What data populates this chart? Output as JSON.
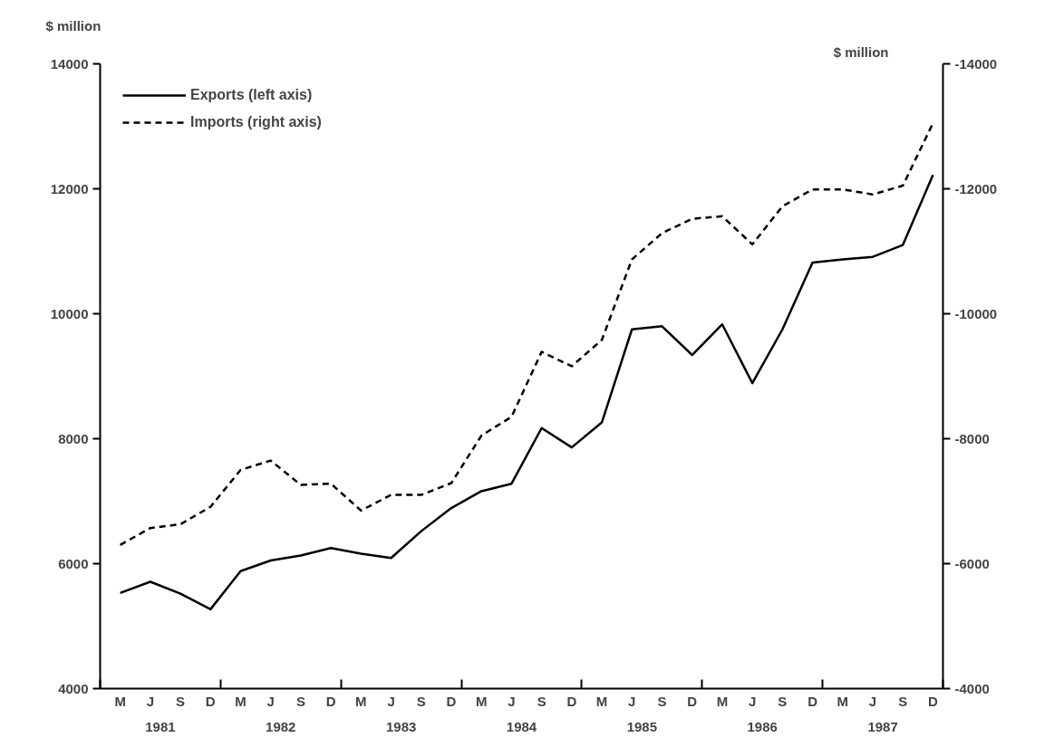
{
  "chart_data": {
    "type": "line",
    "ylabel": "$ million",
    "y2label": "$ million",
    "categories": [
      "M",
      "J",
      "S",
      "D",
      "M",
      "J",
      "S",
      "D",
      "M",
      "J",
      "S",
      "D",
      "M",
      "J",
      "S",
      "D",
      "M",
      "J",
      "S",
      "D",
      "M",
      "J",
      "S",
      "D",
      "M",
      "J",
      "S",
      "D"
    ],
    "series": [
      {
        "name": "Exports (left axis)",
        "color": "#000000",
        "line_style": "solid",
        "values": [
          5530,
          5710,
          5520,
          5270,
          5880,
          6050,
          6130,
          6250,
          6160,
          6090,
          6520,
          6890,
          7160,
          7280,
          8170,
          7860,
          8260,
          9750,
          9800,
          9340,
          9830,
          8890,
          9750,
          10820,
          10870,
          10910,
          11100,
          12220
        ]
      },
      {
        "name": "Imports (right axis)",
        "color": "#000000",
        "line_style": "dashed",
        "axis": "y2",
        "values": [
          -6300,
          -6570,
          -6630,
          -6910,
          -7500,
          -7650,
          -7260,
          -7280,
          -6850,
          -7100,
          -7100,
          -7290,
          -8050,
          -8350,
          -9390,
          -9160,
          -9580,
          -10870,
          -11290,
          -11520,
          -11560,
          -11110,
          -11720,
          -11990,
          -11990,
          -11910,
          -12050,
          -13050
        ]
      }
    ],
    "x2lim": [
      1981,
      1988
    ],
    "x2ticks": [
      {
        "value": 1981,
        "label": null
      },
      {
        "value": 1981.5,
        "label": "1981"
      },
      {
        "value": 1982,
        "label": null
      },
      {
        "value": 1982.5,
        "label": "1982"
      },
      {
        "value": 1983,
        "label": null
      },
      {
        "value": 1983.5,
        "label": "1983"
      },
      {
        "value": 1984,
        "label": null
      },
      {
        "value": 1984.5,
        "label": "1984"
      },
      {
        "value": 1985,
        "label": null
      },
      {
        "value": 1985.5,
        "label": "1985"
      },
      {
        "value": 1986,
        "label": null
      },
      {
        "value": 1986.5,
        "label": "1986"
      },
      {
        "value": 1987,
        "label": null
      },
      {
        "value": 1987.5,
        "label": "1987"
      },
      {
        "value": 1988,
        "label": null
      }
    ],
    "ylim": [
      4000,
      14000
    ],
    "yticks": [
      4000,
      6000,
      8000,
      10000,
      12000,
      14000
    ],
    "y2lim": [
      -4000,
      -14000
    ],
    "y2ticks": [
      -4000,
      -6000,
      -8000,
      -10000,
      -12000,
      -14000
    ],
    "legend": "top left"
  }
}
